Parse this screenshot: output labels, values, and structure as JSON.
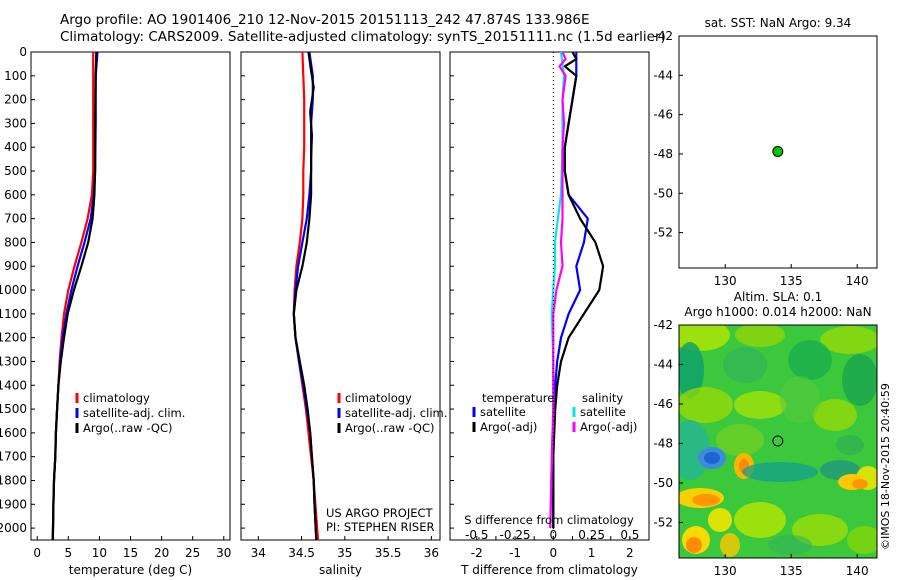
{
  "header": {
    "line1": "Argo profile: AO 1901406_210 12-Nov-2015 20151113_242 47.874S 133.986E",
    "line2": "Climatology: CARS2009. Satellite-adjusted climatology: synTS_20151111.nc (1.5d earlier)"
  },
  "colors": {
    "climatology": "#ff0000",
    "satellite": "#0000ff",
    "argo": "#000000",
    "satellite_s": "#00e5ee",
    "argo_s": "#ff00ff",
    "marker": "#00c800"
  },
  "credit": "©IMOS 18-Nov-2015 20:40:59",
  "chart_data": [
    {
      "type": "line",
      "id": "temperature-profile",
      "xlabel": "temperature (deg C)",
      "xlim": [
        -1,
        31
      ],
      "ylim": [
        0,
        2050
      ],
      "y_reversed": true,
      "xticks": [
        0,
        5,
        10,
        15,
        20,
        25,
        30
      ],
      "yticks": [
        0,
        100,
        200,
        300,
        400,
        500,
        600,
        700,
        800,
        900,
        1000,
        1100,
        1200,
        1300,
        1400,
        1500,
        1600,
        1700,
        1800,
        1900,
        2000
      ],
      "legend": [
        "climatology",
        "satellite-adj. clim.",
        "Argo(..raw -QC)"
      ],
      "series": [
        {
          "name": "climatology",
          "color": "#ff0000",
          "points": [
            [
              9.0,
              0
            ],
            [
              9.0,
              100
            ],
            [
              9.0,
              300
            ],
            [
              9.0,
              500
            ],
            [
              8.8,
              600
            ],
            [
              8.1,
              700
            ],
            [
              7.1,
              800
            ],
            [
              6.0,
              900
            ],
            [
              5.0,
              1000
            ],
            [
              4.3,
              1100
            ],
            [
              3.9,
              1200
            ],
            [
              3.6,
              1300
            ],
            [
              3.4,
              1400
            ],
            [
              3.2,
              1500
            ],
            [
              3.0,
              1600
            ],
            [
              2.9,
              1700
            ],
            [
              2.7,
              1800
            ],
            [
              2.6,
              1900
            ],
            [
              2.5,
              2050
            ]
          ]
        },
        {
          "name": "satellite-adj. clim.",
          "color": "#0000ff",
          "points": [
            [
              9.7,
              0
            ],
            [
              9.4,
              100
            ],
            [
              9.4,
              300
            ],
            [
              9.3,
              500
            ],
            [
              9.1,
              600
            ],
            [
              8.6,
              700
            ],
            [
              7.6,
              800
            ],
            [
              6.5,
              900
            ],
            [
              5.5,
              1000
            ],
            [
              4.7,
              1100
            ],
            [
              4.1,
              1200
            ],
            [
              3.7,
              1300
            ],
            [
              3.4,
              1400
            ],
            [
              3.2,
              1500
            ],
            [
              3.0,
              1600
            ],
            [
              2.9,
              1700
            ],
            [
              2.7,
              1800
            ],
            [
              2.6,
              1900
            ],
            [
              2.5,
              2050
            ]
          ]
        },
        {
          "name": "Argo(..raw -QC)",
          "color": "#000000",
          "points": [
            [
              9.5,
              0
            ],
            [
              9.4,
              100
            ],
            [
              9.3,
              300
            ],
            [
              9.3,
              500
            ],
            [
              9.2,
              600
            ],
            [
              8.9,
              700
            ],
            [
              8.2,
              800
            ],
            [
              7.1,
              900
            ],
            [
              5.9,
              1000
            ],
            [
              4.9,
              1100
            ],
            [
              4.3,
              1200
            ],
            [
              3.8,
              1300
            ],
            [
              3.4,
              1400
            ],
            [
              3.2,
              1500
            ],
            [
              3.0,
              1600
            ],
            [
              2.9,
              1700
            ],
            [
              2.7,
              1800
            ],
            [
              2.6,
              1900
            ],
            [
              2.5,
              2050
            ]
          ]
        }
      ]
    },
    {
      "type": "line",
      "id": "salinity-profile",
      "xlabel": "salinity",
      "xlim": [
        33.8,
        36.1
      ],
      "ylim": [
        0,
        2050
      ],
      "y_reversed": true,
      "xticks": [
        34,
        34.5,
        35,
        35.5,
        36
      ],
      "legend": [
        "climatology",
        "satellite-adj. clim.",
        "Argo(..raw -QC)"
      ],
      "annotation": [
        "US ARGO PROJECT",
        "PI: STEPHEN RISER"
      ],
      "series": [
        {
          "name": "climatology",
          "color": "#ff0000",
          "points": [
            [
              34.51,
              0
            ],
            [
              34.52,
              100
            ],
            [
              34.53,
              200
            ],
            [
              34.53,
              400
            ],
            [
              34.52,
              500
            ],
            [
              34.52,
              600
            ],
            [
              34.51,
              700
            ],
            [
              34.48,
              800
            ],
            [
              34.44,
              900
            ],
            [
              34.42,
              1000
            ],
            [
              34.41,
              1100
            ],
            [
              34.43,
              1200
            ],
            [
              34.47,
              1300
            ],
            [
              34.51,
              1400
            ],
            [
              34.55,
              1500
            ],
            [
              34.58,
              1600
            ],
            [
              34.61,
              1700
            ],
            [
              34.64,
              1800
            ],
            [
              34.66,
              1900
            ],
            [
              34.69,
              2050
            ]
          ]
        },
        {
          "name": "satellite-adj. clim.",
          "color": "#0000ff",
          "points": [
            [
              34.59,
              0
            ],
            [
              34.63,
              100
            ],
            [
              34.63,
              200
            ],
            [
              34.61,
              300
            ],
            [
              34.61,
              400
            ],
            [
              34.61,
              500
            ],
            [
              34.59,
              600
            ],
            [
              34.56,
              700
            ],
            [
              34.51,
              800
            ],
            [
              34.46,
              900
            ],
            [
              34.43,
              1000
            ],
            [
              34.41,
              1100
            ],
            [
              34.43,
              1200
            ],
            [
              34.47,
              1300
            ],
            [
              34.52,
              1400
            ],
            [
              34.56,
              1500
            ],
            [
              34.6,
              1600
            ],
            [
              34.62,
              1700
            ],
            [
              34.64,
              1800
            ],
            [
              34.65,
              1900
            ],
            [
              34.67,
              2050
            ]
          ]
        },
        {
          "name": "Argo(..raw -QC)",
          "color": "#000000",
          "points": [
            [
              34.58,
              0
            ],
            [
              34.61,
              80
            ],
            [
              34.64,
              150
            ],
            [
              34.6,
              250
            ],
            [
              34.62,
              350
            ],
            [
              34.61,
              450
            ],
            [
              34.61,
              600
            ],
            [
              34.59,
              700
            ],
            [
              34.56,
              800
            ],
            [
              34.51,
              900
            ],
            [
              34.44,
              1000
            ],
            [
              34.41,
              1100
            ],
            [
              34.43,
              1200
            ],
            [
              34.48,
              1300
            ],
            [
              34.53,
              1400
            ],
            [
              34.57,
              1500
            ],
            [
              34.6,
              1600
            ],
            [
              34.62,
              1700
            ],
            [
              34.64,
              1800
            ],
            [
              34.65,
              1900
            ],
            [
              34.67,
              2050
            ]
          ]
        }
      ]
    },
    {
      "type": "line",
      "id": "difference-profile",
      "xlabel": "T difference from climatology",
      "x2label": "S difference from climatology",
      "xlim": [
        -2.7,
        2.5
      ],
      "x2lim": [
        -0.675,
        0.625
      ],
      "ylim": [
        0,
        2050
      ],
      "y_reversed": true,
      "xticks": [
        -2,
        -1.5,
        -1,
        -0.5,
        0,
        0.5,
        1,
        1.5,
        2
      ],
      "xticklabels": [
        "-2",
        "",
        "-1",
        "",
        "0",
        "",
        "1",
        "",
        "2"
      ],
      "x2ticks": [
        -0.5,
        -0.25,
        0,
        0.25,
        0.5
      ],
      "x2ticklabels": [
        "-0.5",
        "-0.25",
        "0",
        "0.25",
        "0.5"
      ],
      "legend_titles": [
        "temperature",
        "salinity"
      ],
      "legend": [
        "satellite",
        "Argo(-adj)",
        "satellite",
        "Argo(-adj)"
      ],
      "series": [
        {
          "name": "satellite",
          "variable": "temperature",
          "color": "#0000ff",
          "points": [
            [
              0.6,
              0
            ],
            [
              0.6,
              100
            ],
            [
              0.5,
              200
            ],
            [
              0.4,
              300
            ],
            [
              0.3,
              400
            ],
            [
              0.3,
              500
            ],
            [
              0.4,
              600
            ],
            [
              0.9,
              700
            ],
            [
              0.8,
              800
            ],
            [
              0.6,
              900
            ],
            [
              0.7,
              1000
            ],
            [
              0.4,
              1100
            ],
            [
              0.2,
              1200
            ],
            [
              0.1,
              1300
            ],
            [
              0.05,
              1400
            ],
            [
              0,
              1500
            ],
            [
              0,
              1700
            ],
            [
              0,
              2000
            ]
          ]
        },
        {
          "name": "Argo(-adj)",
          "variable": "temperature",
          "color": "#000000",
          "points": [
            [
              0.5,
              0
            ],
            [
              0.6,
              30
            ],
            [
              0.3,
              60
            ],
            [
              0.6,
              100
            ],
            [
              0.5,
              200
            ],
            [
              0.4,
              300
            ],
            [
              0.3,
              400
            ],
            [
              0.3,
              500
            ],
            [
              0.4,
              600
            ],
            [
              0.7,
              700
            ],
            [
              1.1,
              800
            ],
            [
              1.3,
              900
            ],
            [
              1.2,
              1000
            ],
            [
              0.8,
              1100
            ],
            [
              0.4,
              1200
            ],
            [
              0.2,
              1300
            ],
            [
              0.1,
              1400
            ],
            [
              0.05,
              1500
            ],
            [
              0,
              1700
            ],
            [
              0,
              2000
            ]
          ]
        },
        {
          "name": "satellite",
          "variable": "salinity",
          "color": "#00e5ee",
          "points": [
            [
              0.05,
              0
            ],
            [
              0.07,
              100
            ],
            [
              0.06,
              200
            ],
            [
              0.06,
              400
            ],
            [
              0.05,
              600
            ],
            [
              0.03,
              700
            ],
            [
              0.01,
              800
            ],
            [
              0.01,
              900
            ],
            [
              0,
              1000
            ],
            [
              -0.01,
              1100
            ],
            [
              0,
              1300
            ],
            [
              0,
              1500
            ],
            [
              -0.01,
              1700
            ],
            [
              -0.02,
              2000
            ]
          ]
        },
        {
          "name": "Argo(-adj)",
          "variable": "salinity",
          "color": "#ff00ff",
          "points": [
            [
              0.06,
              0
            ],
            [
              0.08,
              30
            ],
            [
              0.04,
              60
            ],
            [
              0.08,
              100
            ],
            [
              0.06,
              200
            ],
            [
              0.07,
              300
            ],
            [
              0.06,
              400
            ],
            [
              0.06,
              600
            ],
            [
              0.06,
              700
            ],
            [
              0.05,
              800
            ],
            [
              0.06,
              900
            ],
            [
              0.02,
              1000
            ],
            [
              0,
              1100
            ],
            [
              0,
              1300
            ],
            [
              0,
              1500
            ],
            [
              -0.01,
              1700
            ],
            [
              -0.02,
              2000
            ]
          ]
        }
      ]
    },
    {
      "type": "scatter",
      "id": "sst-map",
      "title": "sat. SST: NaN Argo: 9.34",
      "xlim": [
        126.5,
        141.5
      ],
      "ylim": [
        -53.8,
        -42
      ],
      "xticks": [
        130,
        135,
        140
      ],
      "yticks": [
        -42,
        -44,
        -46,
        -48,
        -50,
        -52
      ],
      "points": [
        [
          133.986,
          -47.874
        ]
      ]
    },
    {
      "type": "heatmap",
      "id": "sla-map",
      "title_line1": "Altim. SLA: 0.1",
      "title_line2": "Argo h1000: 0.014 h2000: NaN",
      "xlim": [
        126.5,
        141.5
      ],
      "ylim": [
        -53.8,
        -42
      ],
      "xticks": [
        130,
        135,
        140
      ],
      "yticks": [
        -42,
        -44,
        -46,
        -48,
        -50,
        -52
      ],
      "points": [
        [
          133.986,
          -47.874
        ]
      ]
    }
  ]
}
